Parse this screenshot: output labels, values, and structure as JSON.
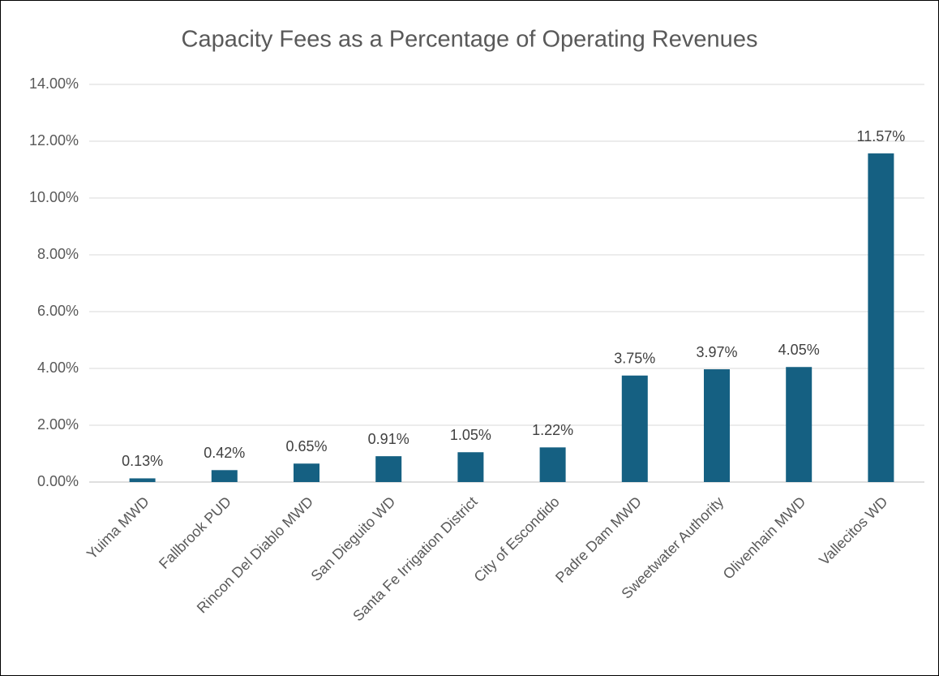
{
  "chart_data": {
    "type": "bar",
    "title": "Capacity Fees as a Percentage of Operating Revenues",
    "categories": [
      "Yuima MWD",
      "Fallbrook PUD",
      "Rincon Del Diablo MWD",
      "San Dieguito WD",
      "Santa Fe Irrigation District",
      "City of Escondido",
      "Padre Dam MWD",
      "Sweetwater Authority",
      "Olivenhain MWD",
      "Vallecitos WD"
    ],
    "values": [
      0.13,
      0.42,
      0.65,
      0.91,
      1.05,
      1.22,
      3.75,
      3.97,
      4.05,
      11.57
    ],
    "value_labels": [
      "0.13%",
      "0.42%",
      "0.65%",
      "0.91%",
      "1.05%",
      "1.22%",
      "3.75%",
      "3.97%",
      "4.05%",
      "11.57%"
    ],
    "color": "#156082",
    "ylim": [
      0,
      14
    ],
    "yticks": [
      {
        "value": 0,
        "label": "0.00%"
      },
      {
        "value": 2,
        "label": "2.00%"
      },
      {
        "value": 4,
        "label": "4.00%"
      },
      {
        "value": 6,
        "label": "6.00%"
      },
      {
        "value": 8,
        "label": "8.00%"
      },
      {
        "value": 10,
        "label": "10.00%"
      },
      {
        "value": 12,
        "label": "12.00%"
      },
      {
        "value": 14,
        "label": "14.00%"
      }
    ],
    "grid": true
  }
}
